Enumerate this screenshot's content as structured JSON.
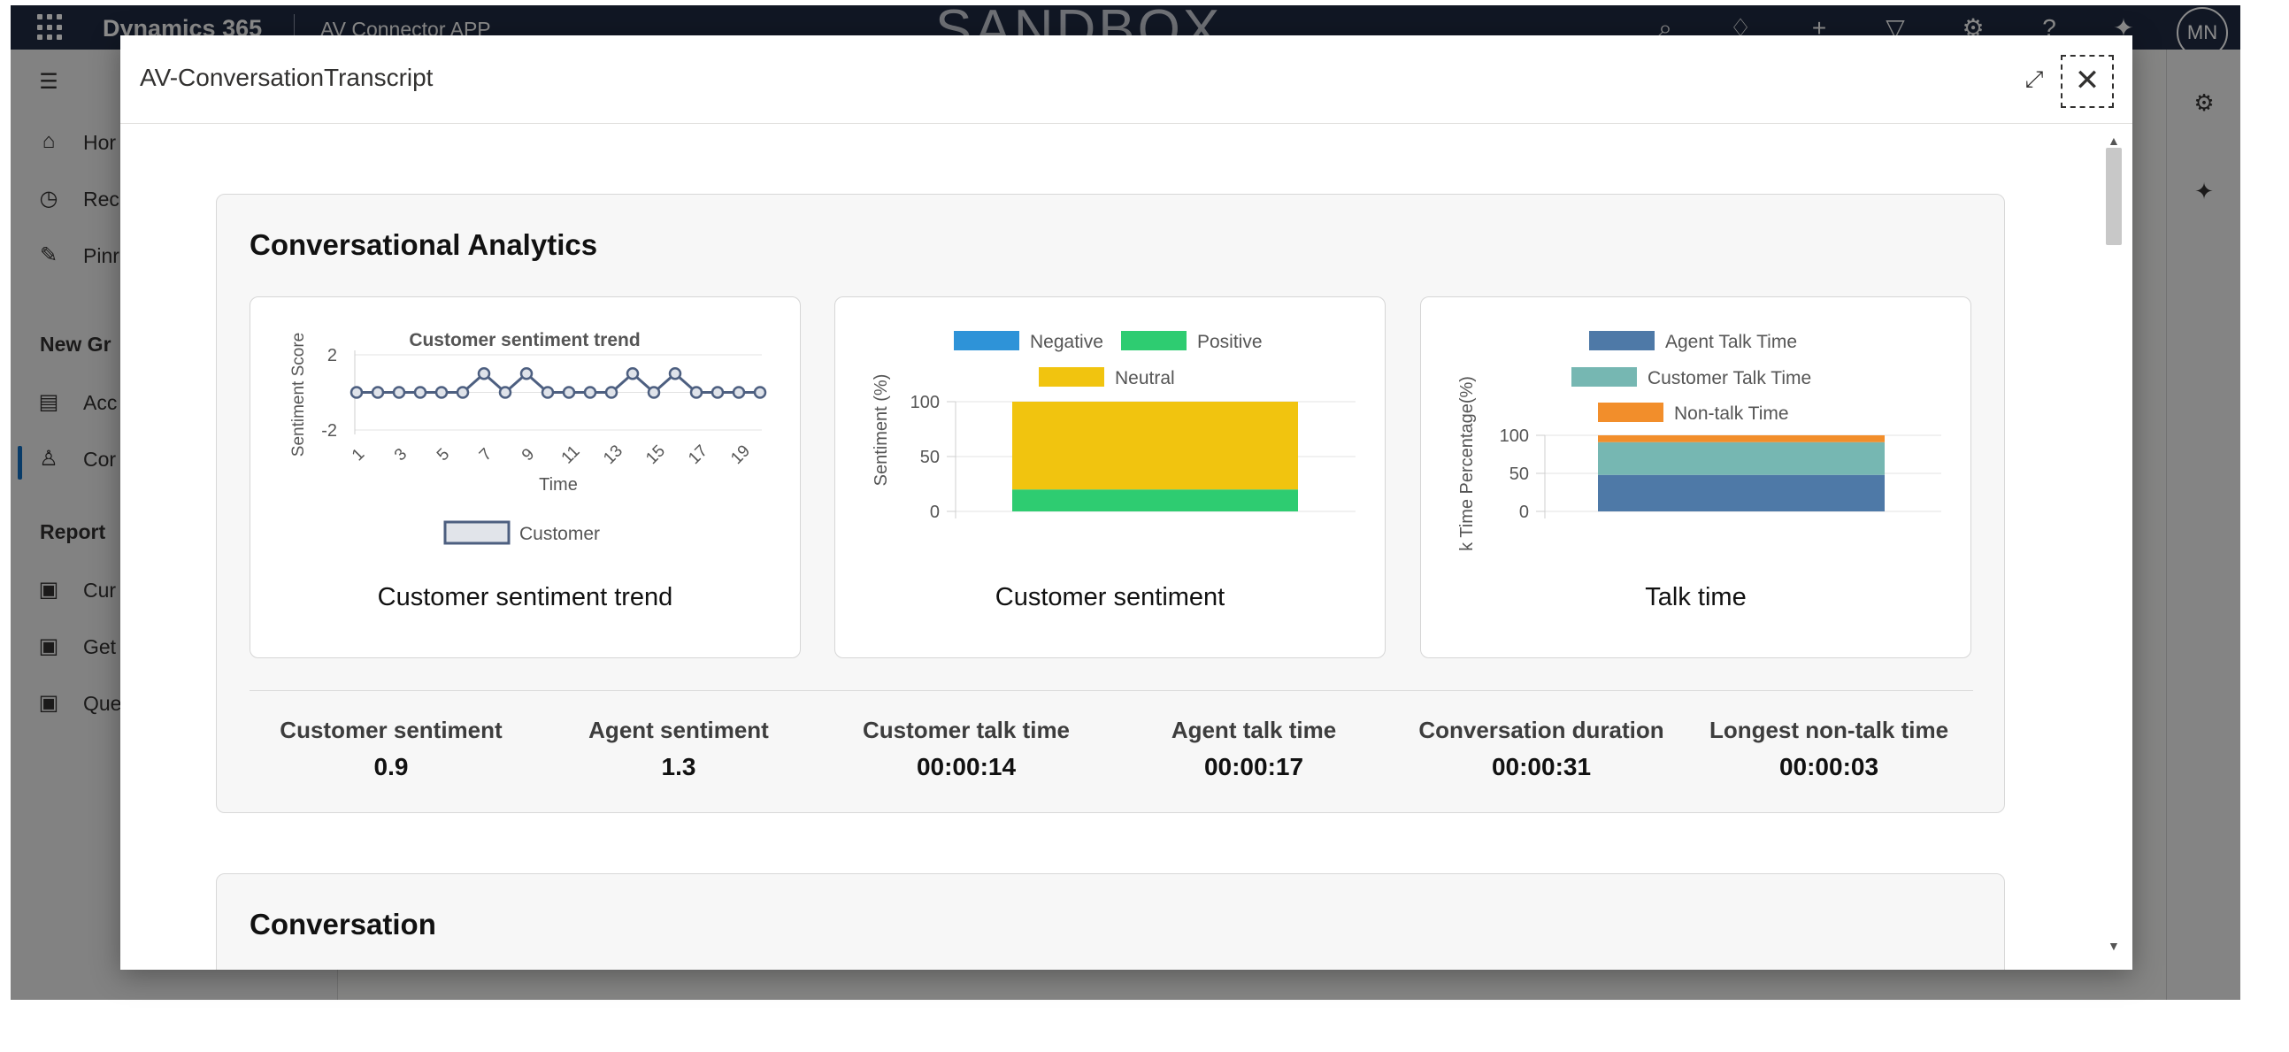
{
  "topbar": {
    "brand": "Dynamics 365",
    "app_name": "AV Connector APP",
    "environment": "SANDBOX",
    "avatar_initials": "MN"
  },
  "sidebar": {
    "items": [
      {
        "label": "Hor",
        "icon": "home-icon"
      },
      {
        "label": "Rec",
        "icon": "clock-icon"
      },
      {
        "label": "Pinr",
        "icon": "pin-icon"
      }
    ],
    "group1": "New Gr",
    "group1_items": [
      {
        "label": "Acc",
        "icon": "account-icon"
      },
      {
        "label": "Cor",
        "icon": "person-icon"
      }
    ],
    "group2": "Report",
    "group2_items": [
      {
        "label": "Cur",
        "icon": "report-icon"
      },
      {
        "label": "Get",
        "icon": "report-icon"
      },
      {
        "label": "Que",
        "icon": "report-icon"
      }
    ]
  },
  "dialog": {
    "title": "AV-ConversationTranscript",
    "expand_icon": "expand-icon",
    "close_icon": "close-icon"
  },
  "analytics": {
    "title": "Conversational Analytics",
    "captions": [
      "Customer sentiment trend",
      "Customer sentiment",
      "Talk time"
    ],
    "stats": [
      {
        "label": "Customer sentiment",
        "value": "0.9"
      },
      {
        "label": "Agent sentiment",
        "value": "1.3"
      },
      {
        "label": "Customer talk time",
        "value": "00:00:14"
      },
      {
        "label": "Agent talk time",
        "value": "00:00:17"
      },
      {
        "label": "Conversation duration",
        "value": "00:00:31"
      },
      {
        "label": "Longest non-talk time",
        "value": "00:00:03"
      }
    ]
  },
  "conversation": {
    "title": "Conversation"
  },
  "colors": {
    "trend_line": "#4d5f80",
    "negative": "#2e93d8",
    "positive": "#2ecc71",
    "neutral": "#f1c40f",
    "agent_talk": "#4e79a7",
    "customer_talk": "#76b7b2",
    "non_talk": "#f28e2b"
  },
  "chart_data": [
    {
      "type": "line",
      "title": "Customer sentiment trend",
      "xlabel": "Time",
      "ylabel": "Sentiment Score",
      "x": [
        1,
        2,
        3,
        4,
        5,
        6,
        7,
        8,
        9,
        10,
        11,
        12,
        13,
        14,
        15,
        16,
        17,
        18,
        19,
        20
      ],
      "x_tick_labels": [
        "1",
        "3",
        "5",
        "7",
        "9",
        "11",
        "13",
        "15",
        "17",
        "19"
      ],
      "ylim": [
        -2,
        2
      ],
      "y_tick_labels": [
        "2",
        "-2"
      ],
      "series": [
        {
          "name": "Customer",
          "values": [
            0,
            0,
            0,
            0,
            0,
            0,
            1,
            0,
            1,
            0,
            0,
            0,
            0,
            1,
            0,
            1,
            0,
            0,
            0,
            0
          ]
        }
      ],
      "legend": "bottom"
    },
    {
      "type": "bar",
      "stacked": true,
      "ylabel": "Sentiment (%)",
      "ylim": [
        0,
        100
      ],
      "y_tick_labels": [
        "100",
        "50",
        "0"
      ],
      "categories": [
        ""
      ],
      "series": [
        {
          "name": "Negative",
          "values": [
            0
          ]
        },
        {
          "name": "Positive",
          "values": [
            20
          ]
        },
        {
          "name": "Neutral",
          "values": [
            80
          ]
        }
      ],
      "legend": "top"
    },
    {
      "type": "bar",
      "stacked": true,
      "ylabel": "k Time Percentage(%)",
      "ylim": [
        0,
        100
      ],
      "y_tick_labels": [
        "100",
        "50",
        "0"
      ],
      "categories": [
        ""
      ],
      "series": [
        {
          "name": "Agent Talk Time",
          "values": [
            48
          ]
        },
        {
          "name": "Customer Talk Time",
          "values": [
            43
          ]
        },
        {
          "name": "Non-talk Time",
          "values": [
            9
          ]
        }
      ],
      "legend": "top"
    }
  ]
}
